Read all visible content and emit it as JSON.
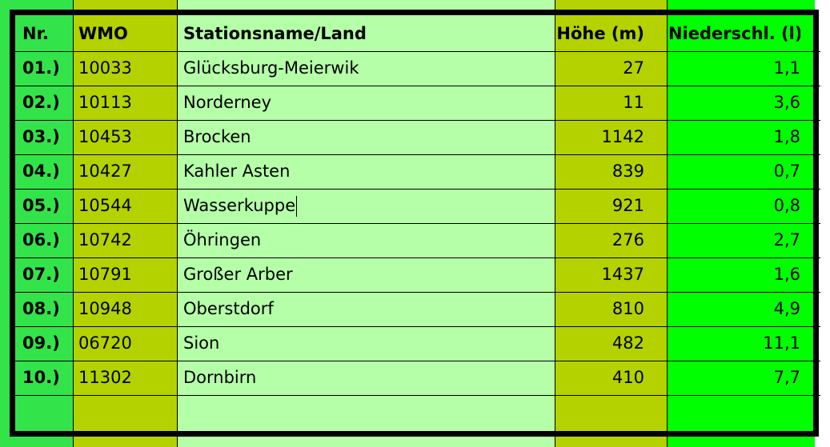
{
  "colors": {
    "col_nr": "#33e34a",
    "col_wmo": "#b3d200",
    "col_name": "#b5ffa8",
    "col_hoehe": "#b3d200",
    "col_niederschlag": "#00ff00",
    "border": "#000000"
  },
  "table": {
    "headers": {
      "nr": "Nr.",
      "wmo": "WMO",
      "station": "Stationsname/Land",
      "hoehe": "Höhe (m)",
      "niederschlag": "Niederschl. (l)"
    },
    "rows": [
      {
        "nr": "01.)",
        "wmo": "10033",
        "station": "Glücksburg-Meierwik",
        "hoehe": "27",
        "niederschlag": "1,1"
      },
      {
        "nr": "02.)",
        "wmo": "10113",
        "station": "Norderney",
        "hoehe": "11",
        "niederschlag": "3,6"
      },
      {
        "nr": "03.)",
        "wmo": "10453",
        "station": "Brocken",
        "hoehe": "1142",
        "niederschlag": "1,8"
      },
      {
        "nr": "04.)",
        "wmo": "10427",
        "station": "Kahler Asten",
        "hoehe": "839",
        "niederschlag": "0,7"
      },
      {
        "nr": "05.)",
        "wmo": "10544",
        "station": "Wasserkuppe",
        "hoehe": "921",
        "niederschlag": "0,8"
      },
      {
        "nr": "06.)",
        "wmo": "10742",
        "station": "Öhringen",
        "hoehe": "276",
        "niederschlag": "2,7"
      },
      {
        "nr": "07.)",
        "wmo": "10791",
        "station": "Großer Arber",
        "hoehe": "1437",
        "niederschlag": "1,6"
      },
      {
        "nr": "08.)",
        "wmo": "10948",
        "station": "Oberstdorf",
        "hoehe": "810",
        "niederschlag": "4,9"
      },
      {
        "nr": "09.)",
        "wmo": "06720",
        "station": "Sion",
        "hoehe": "482",
        "niederschlag": "11,1"
      },
      {
        "nr": "10.)",
        "wmo": "11302",
        "station": "Dornbirn",
        "hoehe": "410",
        "niederschlag": "7,7"
      }
    ],
    "cursor_row": 4
  }
}
